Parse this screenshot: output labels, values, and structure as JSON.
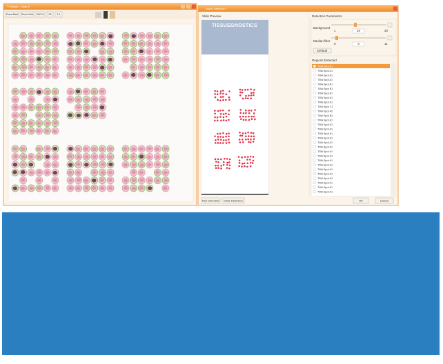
{
  "viewer": {
    "title": "TI Viewer - Slide B",
    "toolbar": [
      "Zoom Best",
      "Zoom Grid",
      "100 %",
      "Fit",
      "1:1"
    ]
  },
  "detection": {
    "title": "Tissue Detection",
    "slide_preview": "Slide Preview",
    "logo": "TISSUEGNOSTICS",
    "parameters": "Detection Parameters",
    "background": {
      "label": "Background",
      "min": 1,
      "value": 10,
      "max": 30
    },
    "median": {
      "label": "Median filter",
      "min": 0,
      "value": 3,
      "max": 11
    },
    "default": "Default",
    "regions": "Regions Detected",
    "items": [
      "TMA Spot A1",
      "TMA Spot A1",
      "TMA Spot A1",
      "TMA Spot A1",
      "TMA Spot A1",
      "TMA Spot B1",
      "TMA Spot A1",
      "TMA Spot A1",
      "TMA Spot A1",
      "TMA Spot C1",
      "TMA Spot A2",
      "TMA Spot B2",
      "TMA Spot A1",
      "TMA Spot A1",
      "TMA Spot A1",
      "TMA Spot A1",
      "TMA Spot A1",
      "TMA Spot A1",
      "TMA Spot A1",
      "TMA Spot A1",
      "TMA Spot A1",
      "TMA Spot A1",
      "TMA Spot A1",
      "TMA Spot A1",
      "TMA Spot A1",
      "TMA Spot A1",
      "TMA Spot A1",
      "TMA Spot A1",
      "TMA Spot A1"
    ],
    "buttons": {
      "run": "Run Detection",
      "clear": "Clear Detection",
      "ok": "OK",
      "cancel": "Cancel"
    }
  }
}
